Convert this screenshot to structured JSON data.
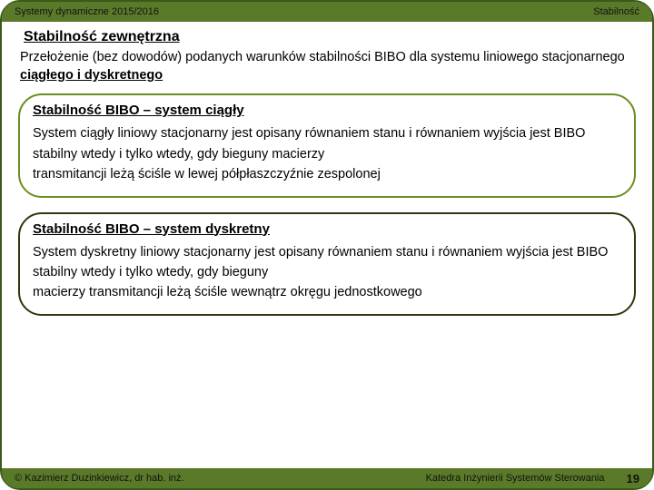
{
  "header": {
    "left": "Systemy dynamiczne 2015/2016",
    "right": "Stabilność"
  },
  "title": "Stabilność zewnętrzna",
  "intro_pre": "Przełożenie (bez dowodów) podanych warunków stabilności BIBO dla systemu liniowego stacjonarnego ",
  "intro_u": "ciągłego i dyskretnego",
  "box1": {
    "title": "Stabilność BIBO – system ciągły",
    "body1": "System ciągły liniowy stacjonarny jest opisany równaniem stanu i równaniem wyjścia jest BIBO stabilny wtedy i tylko wtedy, gdy bieguny macierzy",
    "body2": "transmitancji leżą ściśle w lewej półpłaszczyźnie zespolonej"
  },
  "box2": {
    "title": "Stabilność BIBO – system dyskretny",
    "body1": "System dyskretny liniowy stacjonarny jest opisany równaniem stanu i równaniem wyjścia jest BIBO stabilny wtedy i tylko wtedy, gdy bieguny",
    "body2": "macierzy transmitancji leżą ściśle wewnątrz okręgu jednostkowego"
  },
  "footer": {
    "left": "© Kazimierz Duzinkiewicz, dr hab. inż.",
    "center": "Katedra Inżynierii Systemów Sterowania",
    "page": "19"
  },
  "colors": {
    "bar": "#5a7a2a",
    "border": "#3a5a1a",
    "box_green": "#6b8e23",
    "box_dark": "#2a3a10"
  }
}
